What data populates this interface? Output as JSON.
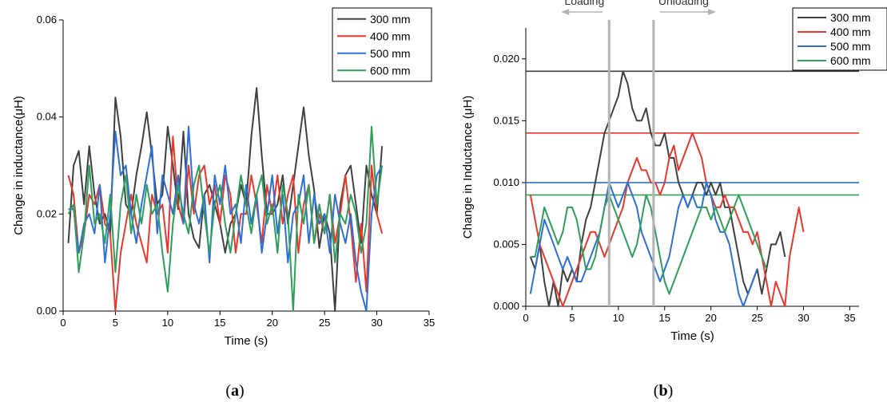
{
  "chart_data": [
    {
      "id": "a",
      "type": "line",
      "panel_label": "a",
      "xlabel": "Time (s)",
      "ylabel": "Change in inductance(μH)",
      "xlim": [
        0,
        35
      ],
      "ylim": [
        0,
        0.06
      ],
      "xticks": [
        "0",
        "5",
        "10",
        "15",
        "20",
        "25",
        "30",
        "35"
      ],
      "yticks": [
        "0.00",
        "0.02",
        "0.04",
        "0.06"
      ],
      "legend_position": "top-right",
      "series": [
        {
          "name": "300 mm",
          "color": "#3f3f3f",
          "x": [
            0.5,
            1,
            1.5,
            2,
            2.5,
            3,
            3.5,
            4,
            4.5,
            5,
            5.5,
            6,
            6.5,
            7,
            7.5,
            8,
            8.5,
            9,
            9.5,
            10,
            10.5,
            11,
            11.5,
            12,
            12.5,
            13,
            13.5,
            14,
            14.5,
            15,
            15.5,
            16,
            16.5,
            17,
            17.5,
            18,
            18.5,
            19,
            19.5,
            20,
            20.5,
            21,
            21.5,
            22,
            22.5,
            23,
            23.5,
            24,
            24.5,
            25,
            25.5,
            26,
            26.5,
            27,
            27.5,
            28,
            28.5,
            29,
            29.5,
            30,
            30.5
          ],
          "y": [
            0.014,
            0.03,
            0.033,
            0.022,
            0.034,
            0.024,
            0.018,
            0.02,
            0.016,
            0.044,
            0.036,
            0.022,
            0.02,
            0.028,
            0.034,
            0.041,
            0.032,
            0.022,
            0.024,
            0.038,
            0.03,
            0.021,
            0.037,
            0.02,
            0.015,
            0.013,
            0.024,
            0.026,
            0.022,
            0.018,
            0.012,
            0.018,
            0.02,
            0.026,
            0.022,
            0.036,
            0.046,
            0.032,
            0.02,
            0.02,
            0.022,
            0.028,
            0.018,
            0.026,
            0.034,
            0.042,
            0.032,
            0.025,
            0.013,
            0.02,
            0.016,
            0.0,
            0.022,
            0.028,
            0.03,
            0.022,
            0.014,
            0.03,
            0.024,
            0.02,
            0.034
          ]
        },
        {
          "name": "400 mm",
          "color": "#e8372d",
          "x": [
            0.5,
            1,
            1.5,
            2,
            2.5,
            3,
            3.5,
            4,
            4.5,
            5,
            5.5,
            6,
            6.5,
            7,
            7.5,
            8,
            8.5,
            9,
            9.5,
            10,
            10.5,
            11,
            11.5,
            12,
            12.5,
            13,
            13.5,
            14,
            14.5,
            15,
            15.5,
            16,
            16.5,
            17,
            17.5,
            18,
            18.5,
            19,
            19.5,
            20,
            20.5,
            21,
            21.5,
            22,
            22.5,
            23,
            23.5,
            24,
            24.5,
            25,
            25.5,
            26,
            26.5,
            27,
            27.5,
            28,
            28.5,
            29,
            29.5,
            30,
            30.5
          ],
          "y": [
            0.028,
            0.024,
            0.012,
            0.016,
            0.024,
            0.022,
            0.026,
            0.018,
            0.016,
            0.0,
            0.012,
            0.018,
            0.024,
            0.018,
            0.014,
            0.01,
            0.024,
            0.02,
            0.022,
            0.012,
            0.036,
            0.022,
            0.018,
            0.03,
            0.02,
            0.028,
            0.03,
            0.022,
            0.026,
            0.018,
            0.028,
            0.024,
            0.012,
            0.02,
            0.02,
            0.028,
            0.022,
            0.014,
            0.026,
            0.02,
            0.028,
            0.018,
            0.024,
            0.028,
            0.012,
            0.022,
            0.026,
            0.014,
            0.02,
            0.016,
            0.024,
            0.014,
            0.02,
            0.028,
            0.018,
            0.006,
            0.018,
            0.004,
            0.03,
            0.02,
            0.016
          ]
        },
        {
          "name": "500 mm",
          "color": "#2d6fd6",
          "x": [
            0.5,
            1,
            1.5,
            2,
            2.5,
            3,
            3.5,
            4,
            4.5,
            5,
            5.5,
            6,
            6.5,
            7,
            7.5,
            8,
            8.5,
            9,
            9.5,
            10,
            10.5,
            11,
            11.5,
            12,
            12.5,
            13,
            13.5,
            14,
            14.5,
            15,
            15.5,
            16,
            16.5,
            17,
            17.5,
            18,
            18.5,
            19,
            19.5,
            20,
            20.5,
            21,
            21.5,
            22,
            22.5,
            23,
            23.5,
            24,
            24.5,
            25,
            25.5,
            26,
            26.5,
            27,
            27.5,
            28,
            28.5,
            29,
            29.5,
            30,
            30.5
          ],
          "y": [
            0.021,
            0.021,
            0.012,
            0.018,
            0.02,
            0.016,
            0.026,
            0.01,
            0.02,
            0.037,
            0.028,
            0.03,
            0.02,
            0.014,
            0.022,
            0.028,
            0.034,
            0.016,
            0.028,
            0.024,
            0.02,
            0.028,
            0.018,
            0.038,
            0.022,
            0.018,
            0.024,
            0.01,
            0.028,
            0.022,
            0.03,
            0.02,
            0.022,
            0.014,
            0.026,
            0.018,
            0.024,
            0.012,
            0.02,
            0.028,
            0.016,
            0.024,
            0.01,
            0.02,
            0.022,
            0.028,
            0.014,
            0.024,
            0.018,
            0.02,
            0.012,
            0.024,
            0.018,
            0.014,
            0.02,
            0.01,
            0.004,
            0.0,
            0.02,
            0.028,
            0.03
          ]
        },
        {
          "name": "600 mm",
          "color": "#2f9e5b",
          "x": [
            0.5,
            1,
            1.5,
            2,
            2.5,
            3,
            3.5,
            4,
            4.5,
            5,
            5.5,
            6,
            6.5,
            7,
            7.5,
            8,
            8.5,
            9,
            9.5,
            10,
            10.5,
            11,
            11.5,
            12,
            12.5,
            13,
            13.5,
            14,
            14.5,
            15,
            15.5,
            16,
            16.5,
            17,
            17.5,
            18,
            18.5,
            19,
            19.5,
            20,
            20.5,
            21,
            21.5,
            22,
            22.5,
            23,
            23.5,
            24,
            24.5,
            25,
            25.5,
            26,
            26.5,
            27,
            27.5,
            28,
            28.5,
            29,
            29.5,
            30,
            30.5
          ],
          "y": [
            0.02,
            0.022,
            0.008,
            0.016,
            0.03,
            0.018,
            0.02,
            0.014,
            0.024,
            0.008,
            0.022,
            0.028,
            0.016,
            0.024,
            0.018,
            0.026,
            0.02,
            0.022,
            0.012,
            0.004,
            0.018,
            0.026,
            0.02,
            0.016,
            0.026,
            0.03,
            0.02,
            0.012,
            0.022,
            0.026,
            0.018,
            0.012,
            0.02,
            0.028,
            0.022,
            0.016,
            0.024,
            0.028,
            0.018,
            0.022,
            0.012,
            0.026,
            0.02,
            0.0,
            0.024,
            0.018,
            0.026,
            0.014,
            0.022,
            0.016,
            0.024,
            0.01,
            0.02,
            0.018,
            0.024,
            0.02,
            0.012,
            0.018,
            0.038,
            0.022,
            0.03
          ]
        }
      ]
    },
    {
      "id": "b",
      "type": "line",
      "panel_label": "b",
      "xlabel": "Time (s)",
      "ylabel": "Change in Inductance (μH)",
      "xlim": [
        0,
        36
      ],
      "ylim": [
        0,
        0.0225
      ],
      "xticks": [
        "0",
        "5",
        "10",
        "15",
        "20",
        "25",
        "30",
        "35"
      ],
      "yticks": [
        "0.000",
        "0.005",
        "0.010",
        "0.015",
        "0.020"
      ],
      "legend_position": "top-right",
      "annotations": [
        {
          "text": "Loading",
          "x": 9.0,
          "arrow": "left"
        },
        {
          "text": "Unloading",
          "x": 13.8,
          "arrow": "right"
        }
      ],
      "reference_lines": [
        {
          "series": "300 mm",
          "y": 0.019
        },
        {
          "series": "400 mm",
          "y": 0.014
        },
        {
          "series": "500 mm",
          "y": 0.01
        },
        {
          "series": "600 mm",
          "y": 0.009
        }
      ],
      "series": [
        {
          "name": "300 mm",
          "color": "#3f3f3f",
          "x": [
            0.5,
            1,
            1.5,
            2,
            2.5,
            3,
            3.5,
            4,
            4.5,
            5,
            5.5,
            6,
            6.5,
            7,
            7.5,
            8,
            8.5,
            9,
            9.5,
            10,
            10.5,
            11,
            11.5,
            12,
            12.5,
            13,
            13.5,
            14,
            14.5,
            15,
            15.5,
            16,
            16.5,
            17,
            17.5,
            18,
            18.5,
            19,
            19.5,
            20,
            20.5,
            21,
            21.5,
            22,
            22.5,
            23,
            23.5,
            24,
            24.5,
            25,
            25.5,
            26,
            26.5,
            27,
            27.5,
            28
          ],
          "y": [
            0.004,
            0.003,
            0.005,
            0.002,
            0.0,
            0.002,
            0.0,
            0.003,
            0.002,
            0.003,
            0.002,
            0.005,
            0.007,
            0.008,
            0.01,
            0.012,
            0.014,
            0.015,
            0.016,
            0.017,
            0.019,
            0.018,
            0.016,
            0.015,
            0.015,
            0.016,
            0.014,
            0.013,
            0.013,
            0.014,
            0.012,
            0.012,
            0.01,
            0.009,
            0.008,
            0.009,
            0.01,
            0.01,
            0.009,
            0.01,
            0.009,
            0.01,
            0.008,
            0.008,
            0.006,
            0.004,
            0.002,
            0.001,
            0.002,
            0.003,
            0.001,
            0.003,
            0.005,
            0.005,
            0.006,
            0.004
          ]
        },
        {
          "name": "400 mm",
          "color": "#e8372d",
          "x": [
            0.5,
            1,
            1.5,
            2,
            2.5,
            3,
            3.5,
            4,
            4.5,
            5,
            5.5,
            6,
            6.5,
            7,
            7.5,
            8,
            8.5,
            9,
            9.5,
            10,
            10.5,
            11,
            11.5,
            12,
            12.5,
            13,
            13.5,
            14,
            14.5,
            15,
            15.5,
            16,
            16.5,
            17,
            17.5,
            18,
            18.5,
            19,
            19.5,
            20,
            20.5,
            21,
            21.5,
            22,
            22.5,
            23,
            23.5,
            24,
            24.5,
            25,
            25.5,
            26,
            26.5,
            27,
            27.5,
            28,
            28.5,
            29,
            29.5,
            30
          ],
          "y": [
            0.009,
            0.007,
            0.005,
            0.004,
            0.003,
            0.002,
            0.001,
            0.0,
            0.001,
            0.002,
            0.003,
            0.004,
            0.005,
            0.006,
            0.006,
            0.005,
            0.004,
            0.005,
            0.006,
            0.007,
            0.008,
            0.01,
            0.011,
            0.012,
            0.011,
            0.011,
            0.01,
            0.01,
            0.009,
            0.01,
            0.012,
            0.013,
            0.011,
            0.012,
            0.013,
            0.014,
            0.013,
            0.012,
            0.01,
            0.009,
            0.008,
            0.008,
            0.009,
            0.008,
            0.008,
            0.007,
            0.006,
            0.006,
            0.005,
            0.006,
            0.004,
            0.002,
            0.0,
            0.002,
            0.001,
            0.0,
            0.004,
            0.006,
            0.008,
            0.006
          ]
        },
        {
          "name": "500 mm",
          "color": "#2d6fd6",
          "x": [
            0.5,
            1,
            1.5,
            2,
            2.5,
            3,
            3.5,
            4,
            4.5,
            5,
            5.5,
            6,
            6.5,
            7,
            7.5,
            8,
            8.5,
            9,
            9.5,
            10,
            10.5,
            11,
            11.5,
            12,
            12.5,
            13,
            13.5,
            14,
            14.5,
            15,
            15.5,
            16,
            16.5,
            17,
            17.5,
            18,
            18.5,
            19,
            19.5,
            20,
            20.5,
            21,
            21.5,
            22,
            22.5,
            23,
            23.5,
            24,
            24.5,
            25
          ],
          "y": [
            0.001,
            0.003,
            0.005,
            0.007,
            0.006,
            0.005,
            0.004,
            0.003,
            0.004,
            0.003,
            0.002,
            0.002,
            0.003,
            0.004,
            0.005,
            0.006,
            0.008,
            0.01,
            0.009,
            0.008,
            0.009,
            0.01,
            0.009,
            0.008,
            0.006,
            0.005,
            0.004,
            0.003,
            0.002,
            0.003,
            0.004,
            0.006,
            0.008,
            0.009,
            0.008,
            0.009,
            0.008,
            0.008,
            0.01,
            0.009,
            0.007,
            0.006,
            0.006,
            0.005,
            0.003,
            0.001,
            0.0,
            0.001,
            0.002,
            0.003
          ]
        },
        {
          "name": "600 mm",
          "color": "#2f9e5b",
          "x": [
            0.5,
            1,
            1.5,
            2,
            2.5,
            3,
            3.5,
            4,
            4.5,
            5,
            5.5,
            6,
            6.5,
            7,
            7.5,
            8,
            8.5,
            9,
            9.5,
            10,
            10.5,
            11,
            11.5,
            12,
            12.5,
            13,
            13.5,
            14,
            14.5,
            15,
            15.5,
            16,
            16.5,
            17,
            17.5,
            18,
            18.5,
            19,
            19.5,
            20,
            20.5,
            21,
            21.5,
            22,
            22.5,
            23,
            23.5,
            24,
            24.5,
            25,
            25.5,
            26
          ],
          "y": [
            0.004,
            0.004,
            0.006,
            0.008,
            0.007,
            0.006,
            0.005,
            0.006,
            0.008,
            0.008,
            0.007,
            0.005,
            0.003,
            0.003,
            0.004,
            0.006,
            0.008,
            0.009,
            0.008,
            0.007,
            0.006,
            0.005,
            0.004,
            0.005,
            0.007,
            0.009,
            0.008,
            0.006,
            0.004,
            0.002,
            0.001,
            0.002,
            0.003,
            0.004,
            0.005,
            0.006,
            0.007,
            0.008,
            0.008,
            0.007,
            0.008,
            0.007,
            0.006,
            0.007,
            0.008,
            0.009,
            0.008,
            0.007,
            0.006,
            0.005,
            0.004,
            0.003
          ]
        }
      ]
    }
  ]
}
